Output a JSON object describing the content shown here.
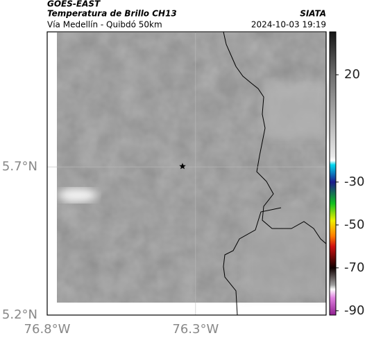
{
  "header": {
    "title": "GOES-EAST",
    "subtitle": "Temperatura de Brillo CH13",
    "location": "Vía Medellín - Quibdó 50km",
    "source": "SIATA",
    "datetime": "2024-10-03 19:19"
  },
  "map": {
    "xlim": [
      -76.8,
      -75.86
    ],
    "ylim": [
      5.2,
      6.156
    ],
    "xticks": [
      {
        "value": -76.8,
        "label": "76.8°W"
      },
      {
        "value": -76.3,
        "label": "76.3°W"
      }
    ],
    "yticks": [
      {
        "value": 5.2,
        "label": "5.2°N"
      },
      {
        "value": 5.7,
        "label": "5.7°N"
      }
    ],
    "marker": {
      "lon": -76.344,
      "lat": 5.702
    }
  },
  "colorbar": {
    "lim": [
      40,
      -92
    ],
    "ticks": [
      20,
      -30,
      -50,
      -70,
      -90
    ],
    "colors": [
      {
        "value": 40,
        "color": "#151515"
      },
      {
        "value": 20,
        "color": "#6e6e6e"
      },
      {
        "value": -18,
        "color": "#e8e8e8"
      },
      {
        "value": -20,
        "color": "#ffffff"
      },
      {
        "value": -22,
        "color": "#00d8f0"
      },
      {
        "value": -30,
        "color": "#1a1a8c"
      },
      {
        "value": -40,
        "color": "#10c020"
      },
      {
        "value": -48,
        "color": "#f0f000"
      },
      {
        "value": -55,
        "color": "#ff8000"
      },
      {
        "value": -60,
        "color": "#d01010"
      },
      {
        "value": -70,
        "color": "#100000"
      },
      {
        "value": -78,
        "color": "#a0a0a0"
      },
      {
        "value": -80,
        "color": "#ffffff"
      },
      {
        "value": -84,
        "color": "#e080e0"
      },
      {
        "value": -92,
        "color": "#902090"
      }
    ]
  }
}
